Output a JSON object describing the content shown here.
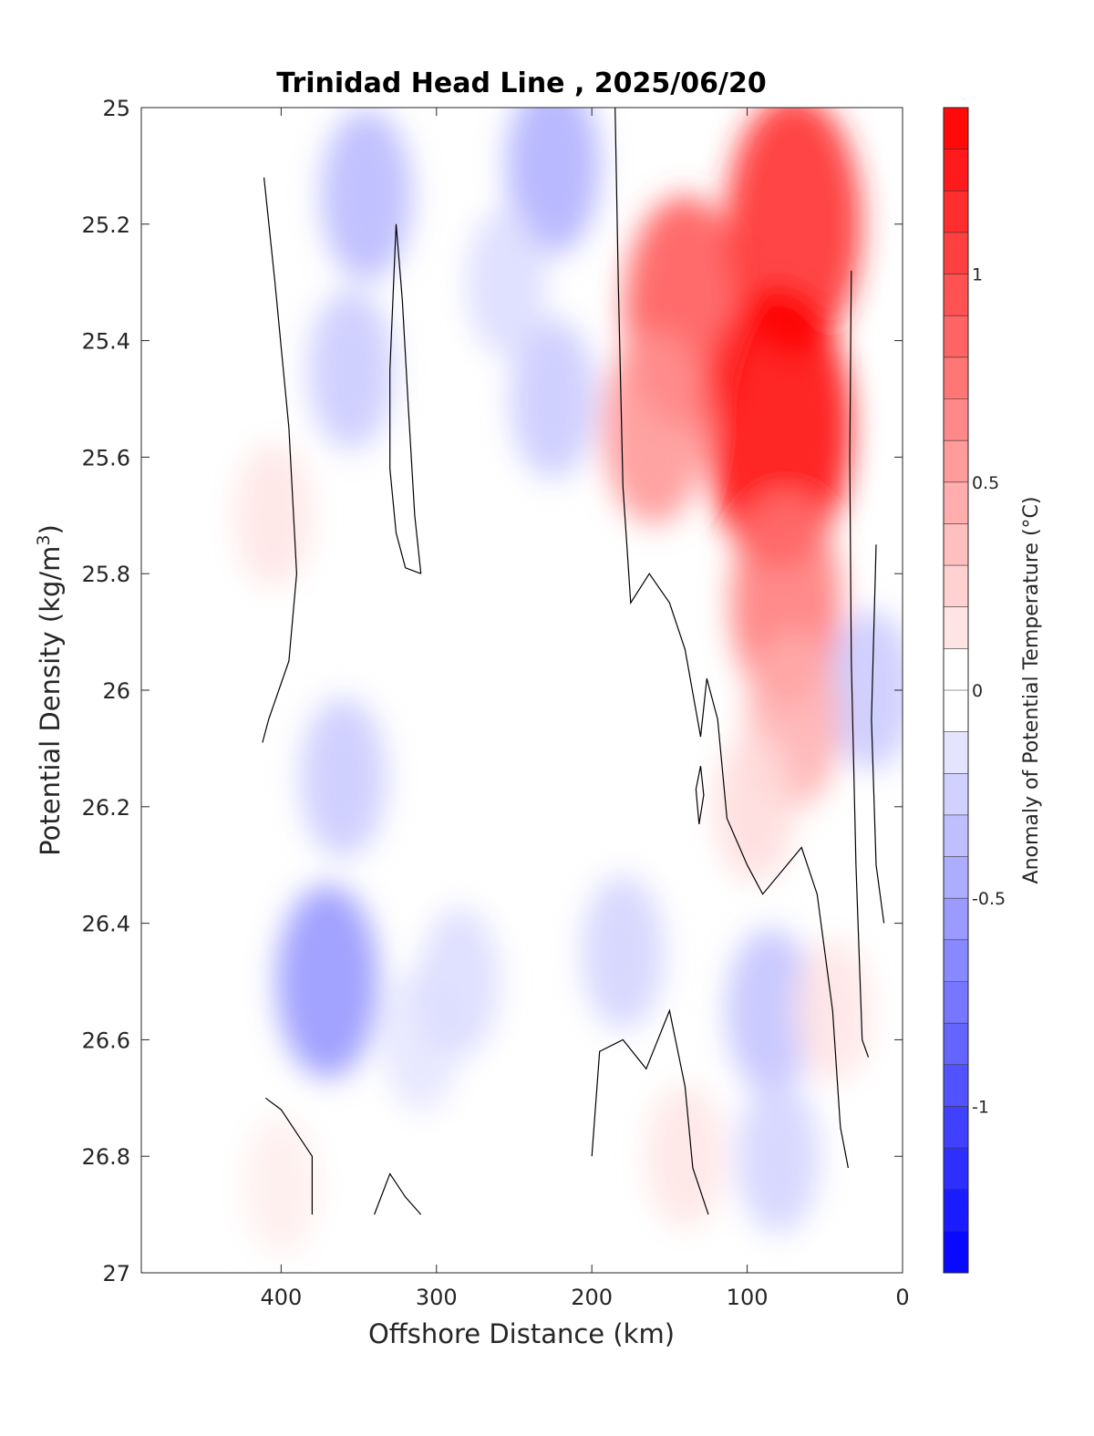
{
  "chart_data": {
    "type": "contour",
    "title": "Trinidad Head Line , 2025/06/20",
    "xlabel": "Offshore Distance (km)",
    "ylabel_main": "Potential Density (kg/m",
    "ylabel_sup": "3",
    "ylabel_close": ")",
    "xlim": [
      490,
      0
    ],
    "ylim": [
      25,
      27
    ],
    "y_reversed": true,
    "x_ticks": [
      400,
      300,
      200,
      100,
      0
    ],
    "x_tick_labels": [
      "400",
      "300",
      "200",
      "100",
      "0"
    ],
    "y_ticks": [
      25,
      25.2,
      25.4,
      25.6,
      25.8,
      26,
      26.2,
      26.4,
      26.6,
      26.8,
      27
    ],
    "y_tick_labels": [
      "25",
      "25.2",
      "25.4",
      "25.6",
      "25.8",
      "26",
      "26.2",
      "26.4",
      "26.6",
      "26.8",
      "27"
    ],
    "colorbar": {
      "label": "Anomaly of Potential Temperature (°C)",
      "clim": [
        -1.4,
        1.4
      ],
      "step": 0.1,
      "ticks": [
        -1,
        -0.5,
        0,
        0.5,
        1
      ],
      "tick_labels": [
        "-1",
        "-0.5",
        "0",
        "0.5",
        "1"
      ],
      "colormap": "blue-white-red",
      "cold_color": "#0000ff",
      "neutral_color": "#ffffff",
      "warm_color": "#ff0000"
    },
    "data_extent": {
      "x": [
        410,
        10
      ],
      "y": [
        25,
        26.9
      ]
    },
    "anomaly_features": [
      {
        "x": 345,
        "y": 25.15,
        "value": -0.4
      },
      {
        "x": 355,
        "y": 25.45,
        "value": -0.3
      },
      {
        "x": 225,
        "y": 25.1,
        "value": -0.45
      },
      {
        "x": 225,
        "y": 25.5,
        "value": -0.3
      },
      {
        "x": 255,
        "y": 25.3,
        "value": -0.2
      },
      {
        "x": 310,
        "y": 26.6,
        "value": -0.15
      },
      {
        "x": 370,
        "y": 26.5,
        "value": -0.6
      },
      {
        "x": 360,
        "y": 26.15,
        "value": -0.3
      },
      {
        "x": 285,
        "y": 26.5,
        "value": -0.2
      },
      {
        "x": 180,
        "y": 26.45,
        "value": -0.25
      },
      {
        "x": 85,
        "y": 26.55,
        "value": -0.35
      },
      {
        "x": 80,
        "y": 26.8,
        "value": -0.25
      },
      {
        "x": 20,
        "y": 26.0,
        "value": -0.3
      },
      {
        "x": 140,
        "y": 25.35,
        "value": 0.95
      },
      {
        "x": 160,
        "y": 25.55,
        "value": 0.6
      },
      {
        "x": 70,
        "y": 25.2,
        "value": 1.2
      },
      {
        "x": 80,
        "y": 25.55,
        "value": 1.4
      },
      {
        "x": 75,
        "y": 25.85,
        "value": 0.75
      },
      {
        "x": 70,
        "y": 26.05,
        "value": 0.45
      },
      {
        "x": 95,
        "y": 26.2,
        "value": 0.2
      },
      {
        "x": 405,
        "y": 25.7,
        "value": 0.15
      },
      {
        "x": 140,
        "y": 26.8,
        "value": 0.15
      },
      {
        "x": 45,
        "y": 26.55,
        "value": 0.15
      },
      {
        "x": 400,
        "y": 26.85,
        "value": 0.1
      }
    ],
    "zero_contours": [
      [
        [
          411,
          25.12
        ],
        [
          404,
          25.3
        ],
        [
          395,
          25.55
        ],
        [
          390,
          25.8
        ],
        [
          395,
          25.95
        ],
        [
          408,
          26.05
        ],
        [
          412,
          26.09
        ]
      ],
      [
        [
          310,
          25.8
        ],
        [
          314,
          25.7
        ],
        [
          318,
          25.52
        ],
        [
          322,
          25.33
        ],
        [
          326,
          25.2
        ],
        [
          330,
          25.45
        ],
        [
          330,
          25.62
        ],
        [
          326,
          25.73
        ],
        [
          320,
          25.79
        ],
        [
          310,
          25.8
        ]
      ],
      [
        [
          185,
          25
        ],
        [
          183,
          25.3
        ],
        [
          180,
          25.65
        ],
        [
          175,
          25.85
        ],
        [
          163,
          25.8
        ],
        [
          150,
          25.85
        ],
        [
          140,
          25.93
        ],
        [
          132,
          26.05
        ],
        [
          130,
          26.08
        ],
        [
          126,
          25.98
        ],
        [
          119,
          26.05
        ],
        [
          113,
          26.22
        ],
        [
          100,
          26.3
        ],
        [
          90,
          26.35
        ],
        [
          65,
          26.27
        ],
        [
          55,
          26.35
        ],
        [
          45,
          26.55
        ],
        [
          40,
          26.75
        ],
        [
          35,
          26.82
        ]
      ],
      [
        [
          130,
          26.13
        ],
        [
          128,
          26.18
        ],
        [
          131,
          26.23
        ],
        [
          133,
          26.17
        ],
        [
          130,
          26.13
        ]
      ],
      [
        [
          33,
          25.28
        ],
        [
          34,
          25.6
        ],
        [
          33,
          25.95
        ],
        [
          30,
          26.3
        ],
        [
          26,
          26.6
        ],
        [
          22,
          26.63
        ]
      ],
      [
        [
          17,
          25.75
        ],
        [
          20,
          26.05
        ],
        [
          17,
          26.3
        ],
        [
          12,
          26.4
        ]
      ],
      [
        [
          200,
          26.8
        ],
        [
          195,
          26.62
        ],
        [
          180,
          26.6
        ],
        [
          165,
          26.65
        ],
        [
          150,
          26.55
        ],
        [
          140,
          26.68
        ],
        [
          135,
          26.82
        ],
        [
          125,
          26.9
        ]
      ],
      [
        [
          410,
          26.7
        ],
        [
          400,
          26.72
        ],
        [
          385,
          26.78
        ],
        [
          380,
          26.8
        ],
        [
          380,
          26.9
        ]
      ],
      [
        [
          340,
          26.9
        ],
        [
          330,
          26.83
        ],
        [
          320,
          26.87
        ],
        [
          310,
          26.9
        ]
      ]
    ]
  }
}
